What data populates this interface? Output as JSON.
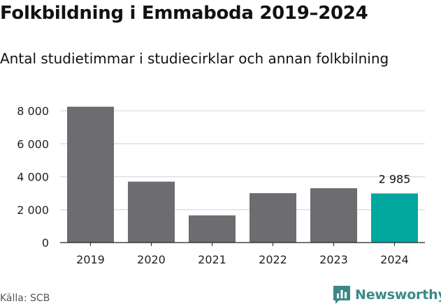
{
  "header": {
    "title": "Folkbildning i Emmaboda 2019–2024",
    "subtitle": "Antal studietimmar i studiecirklar och annan folkbilning"
  },
  "footer": {
    "source": "Källa: SCB",
    "brand": "Newsworthy"
  },
  "colors": {
    "bar": "#6d6c70",
    "highlight": "#00a79d",
    "grid": "#d9d9d9",
    "axis": "#222222",
    "brand": "#3b8a86"
  },
  "icons": {
    "brand_logo": "bar-chart-speech-bubble-icon"
  },
  "chart_data": {
    "type": "bar",
    "categories": [
      "2019",
      "2020",
      "2021",
      "2022",
      "2023",
      "2024"
    ],
    "values": [
      8250,
      3700,
      1650,
      3000,
      3300,
      2985
    ],
    "ylim": [
      0,
      8000
    ],
    "yticks": [
      0,
      2000,
      4000,
      6000,
      8000
    ],
    "ytick_labels": [
      "0",
      "2 000",
      "4 000",
      "6 000",
      "8 000"
    ],
    "highlight_index": 5,
    "annotations": [
      {
        "category": "2024",
        "label": "2 985"
      }
    ],
    "xlabel": "",
    "ylabel": "",
    "grid": true,
    "legend": false
  }
}
